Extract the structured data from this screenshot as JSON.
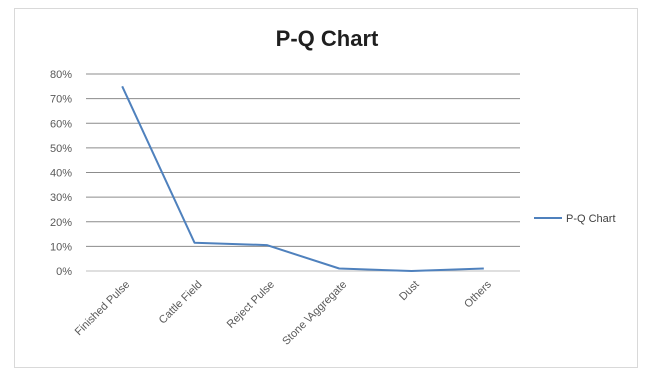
{
  "chart_data": {
    "type": "line",
    "title": "P-Q Chart",
    "categories": [
      "Finished Pulse",
      "Cattle Field",
      "Reject Pulse",
      "Stone \\Aggregate",
      "Dust",
      "Others"
    ],
    "series": [
      {
        "name": "P-Q Chart",
        "values": [
          0.75,
          0.115,
          0.105,
          0.01,
          0.0,
          0.01
        ],
        "color": "#4f81bd"
      }
    ],
    "y_tick_labels": [
      "0%",
      "10%",
      "20%",
      "30%",
      "40%",
      "50%",
      "60%",
      "70%",
      "80%"
    ],
    "ylim": [
      0,
      0.8
    ],
    "grid": true,
    "legend_position": "right"
  }
}
